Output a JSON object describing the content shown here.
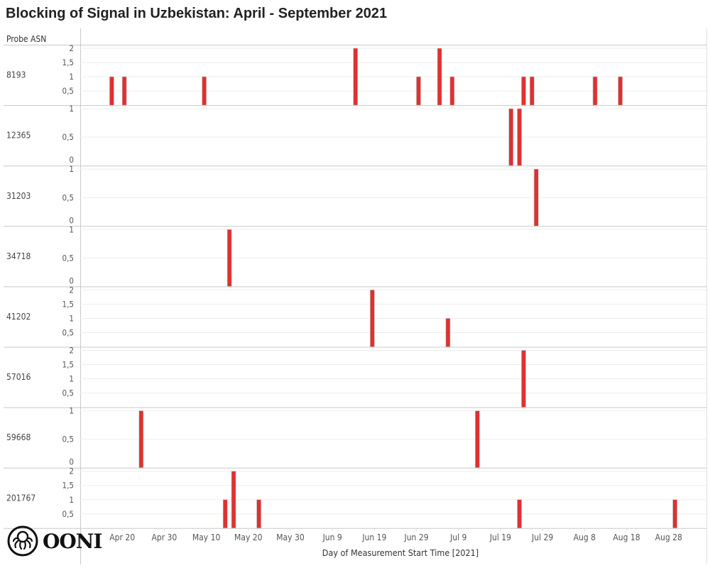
{
  "title": "Blocking of Signal in Uzbekistan: April - September 2021",
  "logo": {
    "text": "OONI",
    "icon": "octopus-icon"
  },
  "chart_data": {
    "type": "bar",
    "title": "Blocking of Signal in Uzbekistan: April - September 2021",
    "row_header": "Probe ASN",
    "xlabel": "Day of Measurement Start Time [2021]",
    "xlim": [
      "2021-04-10",
      "2021-09-06"
    ],
    "x_ticks": [
      {
        "date": "2021-04-20",
        "label": "Apr 20"
      },
      {
        "date": "2021-04-30",
        "label": "Apr 30"
      },
      {
        "date": "2021-05-10",
        "label": "May 10"
      },
      {
        "date": "2021-05-20",
        "label": "May 20"
      },
      {
        "date": "2021-05-30",
        "label": "May 30"
      },
      {
        "date": "2021-06-09",
        "label": "Jun 9"
      },
      {
        "date": "2021-06-19",
        "label": "Jun 19"
      },
      {
        "date": "2021-06-29",
        "label": "Jun 29"
      },
      {
        "date": "2021-07-09",
        "label": "Jul 9"
      },
      {
        "date": "2021-07-19",
        "label": "Jul 19"
      },
      {
        "date": "2021-07-29",
        "label": "Jul 29"
      },
      {
        "date": "2021-08-08",
        "label": "Aug 8"
      },
      {
        "date": "2021-08-18",
        "label": "Aug 18"
      },
      {
        "date": "2021-08-28",
        "label": "Aug 28"
      }
    ],
    "grid": true,
    "bar_color": "#e03030",
    "panels": [
      {
        "asn": "8193",
        "ylim": [
          0,
          2
        ],
        "y_ticks": [
          "2",
          "1,5",
          "1",
          "0,5"
        ],
        "y_tick_values": [
          2,
          1.5,
          1,
          0.5
        ],
        "points": [
          [
            "2021-04-17",
            1
          ],
          [
            "2021-04-20",
            1
          ],
          [
            "2021-05-09",
            1
          ],
          [
            "2021-06-14",
            2
          ],
          [
            "2021-06-29",
            1
          ],
          [
            "2021-07-04",
            2
          ],
          [
            "2021-07-07",
            1
          ],
          [
            "2021-07-24",
            1
          ],
          [
            "2021-07-26",
            1
          ],
          [
            "2021-08-10",
            1
          ],
          [
            "2021-08-16",
            1
          ]
        ]
      },
      {
        "asn": "12365",
        "ylim": [
          0,
          1
        ],
        "y_ticks": [
          "1",
          "0,5",
          "0"
        ],
        "y_tick_values": [
          1,
          0.5,
          0
        ],
        "points": [
          [
            "2021-07-21",
            1
          ],
          [
            "2021-07-23",
            1
          ]
        ]
      },
      {
        "asn": "31203",
        "ylim": [
          0,
          1
        ],
        "y_ticks": [
          "1",
          "0,5",
          "0"
        ],
        "y_tick_values": [
          1,
          0.5,
          0
        ],
        "points": [
          [
            "2021-07-27",
            1
          ]
        ]
      },
      {
        "asn": "34718",
        "ylim": [
          0,
          1
        ],
        "y_ticks": [
          "1",
          "0,5",
          "0"
        ],
        "y_tick_values": [
          1,
          0.5,
          0
        ],
        "points": [
          [
            "2021-05-15",
            1
          ]
        ]
      },
      {
        "asn": "41202",
        "ylim": [
          0,
          2
        ],
        "y_ticks": [
          "2",
          "1,5",
          "1",
          "0,5"
        ],
        "y_tick_values": [
          2,
          1.5,
          1,
          0.5
        ],
        "points": [
          [
            "2021-06-18",
            2
          ],
          [
            "2021-07-06",
            1
          ]
        ]
      },
      {
        "asn": "57016",
        "ylim": [
          0,
          2
        ],
        "y_ticks": [
          "2",
          "1,5",
          "1",
          "0,5"
        ],
        "y_tick_values": [
          2,
          1.5,
          1,
          0.5
        ],
        "points": [
          [
            "2021-07-24",
            2
          ]
        ]
      },
      {
        "asn": "59668",
        "ylim": [
          0,
          1
        ],
        "y_ticks": [
          "1",
          "0,5",
          "0"
        ],
        "y_tick_values": [
          1,
          0.5,
          0
        ],
        "points": [
          [
            "2021-04-24",
            1
          ],
          [
            "2021-07-13",
            1
          ]
        ]
      },
      {
        "asn": "201767",
        "ylim": [
          0,
          2
        ],
        "y_ticks": [
          "2",
          "1,5",
          "1",
          "0,5"
        ],
        "y_tick_values": [
          2,
          1.5,
          1,
          0.5
        ],
        "points": [
          [
            "2021-05-14",
            1
          ],
          [
            "2021-05-16",
            2
          ],
          [
            "2021-05-22",
            1
          ],
          [
            "2021-07-23",
            1
          ],
          [
            "2021-08-29",
            1
          ]
        ]
      }
    ]
  }
}
